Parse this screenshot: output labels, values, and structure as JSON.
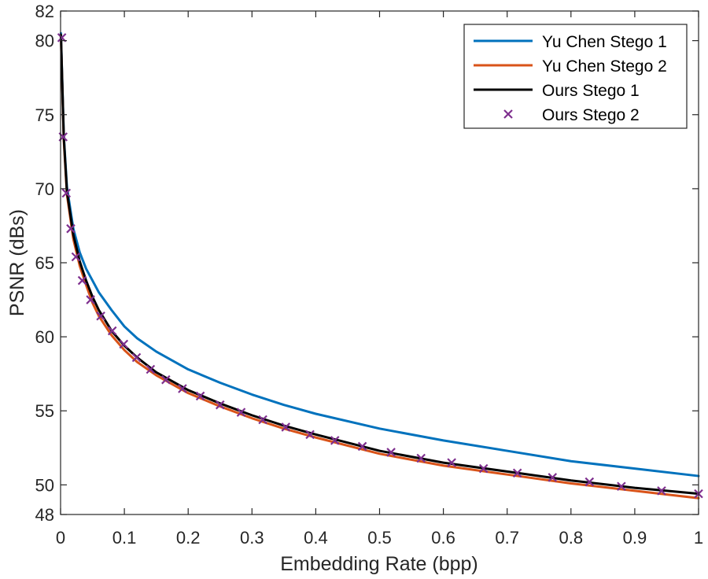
{
  "chart_data": {
    "type": "line",
    "title": "",
    "xlabel": "Embedding Rate (bpp)",
    "ylabel": "PSNR (dBs)",
    "xlim": [
      0,
      1
    ],
    "ylim": [
      48,
      82
    ],
    "xticks": [
      0,
      0.1,
      0.2,
      0.3,
      0.4,
      0.5,
      0.6,
      0.7,
      0.8,
      0.9,
      1
    ],
    "xtick_labels": [
      "0",
      "0.1",
      "0.2",
      "0.3",
      "0.4",
      "0.5",
      "0.6",
      "0.7",
      "0.8",
      "0.9",
      "1"
    ],
    "yticks": [
      48,
      50,
      55,
      60,
      65,
      70,
      75,
      80,
      82
    ],
    "ytick_labels": [
      "48",
      "50",
      "55",
      "60",
      "65",
      "70",
      "75",
      "80",
      "82"
    ],
    "grid": false,
    "legend_position": "top-right",
    "series": [
      {
        "name": "Yu Chen Stego 1",
        "color": "#0072BD",
        "style": "line",
        "x": [
          0.0005,
          0.005,
          0.01,
          0.02,
          0.03,
          0.04,
          0.05,
          0.06,
          0.08,
          0.1,
          0.12,
          0.15,
          0.2,
          0.25,
          0.3,
          0.35,
          0.4,
          0.5,
          0.6,
          0.7,
          0.8,
          0.9,
          1.0
        ],
        "y": [
          80.5,
          73.6,
          70.1,
          67.3,
          65.7,
          64.6,
          63.8,
          63.0,
          61.8,
          60.7,
          59.9,
          59.0,
          57.8,
          56.9,
          56.1,
          55.4,
          54.8,
          53.8,
          53.0,
          52.3,
          51.6,
          51.1,
          50.6
        ]
      },
      {
        "name": "Yu Chen Stego 2",
        "color": "#D95319",
        "style": "line",
        "x": [
          0.0005,
          0.005,
          0.01,
          0.02,
          0.03,
          0.04,
          0.05,
          0.06,
          0.08,
          0.1,
          0.12,
          0.15,
          0.2,
          0.25,
          0.3,
          0.35,
          0.4,
          0.5,
          0.6,
          0.7,
          0.8,
          0.9,
          1.0
        ],
        "y": [
          80.3,
          73.3,
          69.6,
          66.6,
          64.8,
          63.5,
          62.3,
          61.4,
          60.1,
          59.1,
          58.3,
          57.4,
          56.2,
          55.3,
          54.5,
          53.8,
          53.2,
          52.1,
          51.3,
          50.7,
          50.1,
          49.6,
          49.1
        ]
      },
      {
        "name": "Ours Stego 1",
        "color": "#000000",
        "style": "line",
        "x": [
          0.0005,
          0.005,
          0.01,
          0.02,
          0.03,
          0.04,
          0.05,
          0.06,
          0.08,
          0.1,
          0.12,
          0.15,
          0.2,
          0.25,
          0.3,
          0.35,
          0.4,
          0.5,
          0.6,
          0.7,
          0.8,
          0.9,
          1.0
        ],
        "y": [
          80.4,
          73.5,
          69.8,
          66.9,
          65.1,
          63.8,
          62.7,
          61.8,
          60.4,
          59.4,
          58.6,
          57.6,
          56.4,
          55.5,
          54.7,
          54.0,
          53.4,
          52.3,
          51.5,
          50.9,
          50.3,
          49.8,
          49.4
        ]
      },
      {
        "name": "Ours Stego 2",
        "color": "#7E2F8E",
        "style": "marker-x",
        "x": [
          0.002,
          0.004,
          0.009,
          0.016,
          0.024,
          0.034,
          0.047,
          0.063,
          0.081,
          0.099,
          0.119,
          0.141,
          0.165,
          0.191,
          0.219,
          0.25,
          0.283,
          0.317,
          0.353,
          0.391,
          0.43,
          0.473,
          0.518,
          0.565,
          0.613,
          0.663,
          0.716,
          0.771,
          0.829,
          0.879,
          0.942,
          1.0
        ],
        "y": [
          80.2,
          73.5,
          69.7,
          67.3,
          65.4,
          63.8,
          62.5,
          61.4,
          60.4,
          59.5,
          58.6,
          57.8,
          57.1,
          56.5,
          56.0,
          55.4,
          54.9,
          54.4,
          53.9,
          53.4,
          53.0,
          52.6,
          52.2,
          51.8,
          51.5,
          51.1,
          50.8,
          50.5,
          50.2,
          49.9,
          49.6,
          49.4
        ]
      }
    ]
  }
}
